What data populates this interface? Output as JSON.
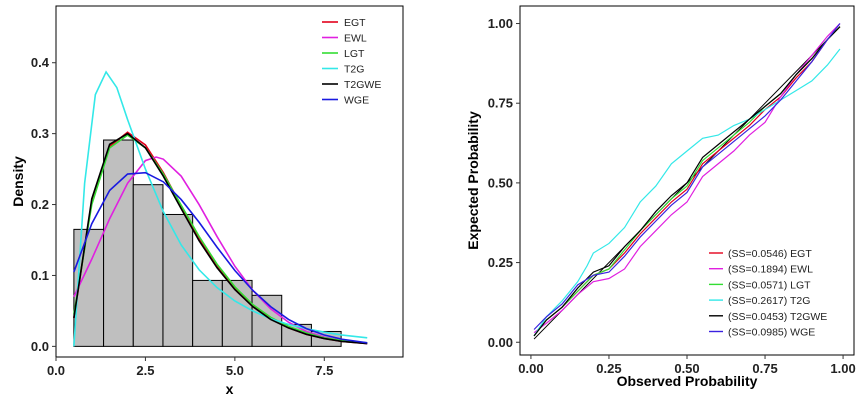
{
  "chart_data": [
    {
      "type": "histogram",
      "xlabel": "x",
      "ylabel": "Density",
      "xlim": [
        0.0,
        9.7
      ],
      "ylim": [
        -0.015,
        0.48
      ],
      "x_ticks": [
        "0.0",
        "2.5",
        "5.0",
        "7.5"
      ],
      "x_tick_values": [
        0,
        2.5,
        5,
        7.5
      ],
      "y_ticks": [
        "0.0",
        "0.1",
        "0.2",
        "0.3",
        "0.4"
      ],
      "y_tick_values": [
        0,
        0.1,
        0.2,
        0.3,
        0.4
      ],
      "legend_position": "top-right",
      "bars": [
        {
          "x0": 0.5,
          "x1": 1.33,
          "density": 0.165
        },
        {
          "x0": 1.33,
          "x1": 2.16,
          "density": 0.291
        },
        {
          "x0": 2.16,
          "x1": 2.99,
          "density": 0.228
        },
        {
          "x0": 2.99,
          "x1": 3.82,
          "density": 0.186
        },
        {
          "x0": 3.82,
          "x1": 4.65,
          "density": 0.093
        },
        {
          "x0": 4.65,
          "x1": 5.48,
          "density": 0.093
        },
        {
          "x0": 5.48,
          "x1": 6.31,
          "density": 0.072
        },
        {
          "x0": 6.31,
          "x1": 7.14,
          "density": 0.031
        },
        {
          "x0": 7.14,
          "x1": 7.97,
          "density": 0.021
        },
        {
          "x0": 7.97,
          "x1": 8.8,
          "density": 0.0
        }
      ],
      "series": [
        {
          "name": "EGT",
          "color": "#e3001b",
          "x": [
            0.5,
            1.0,
            1.5,
            2.0,
            2.5,
            3.0,
            3.5,
            4.0,
            4.5,
            5.0,
            5.5,
            6.0,
            6.5,
            7.0,
            7.5,
            8.0,
            8.7
          ],
          "y": [
            0.04,
            0.205,
            0.282,
            0.302,
            0.284,
            0.245,
            0.198,
            0.152,
            0.113,
            0.081,
            0.057,
            0.039,
            0.026,
            0.017,
            0.011,
            0.007,
            0.004
          ]
        },
        {
          "name": "EWL",
          "color": "#e020e0",
          "x": [
            0.5,
            1.0,
            1.5,
            2.0,
            2.5,
            2.8,
            3.0,
            3.5,
            4.0,
            4.5,
            5.0,
            5.5,
            6.0,
            6.5,
            7.0,
            7.5,
            8.0,
            8.7
          ],
          "y": [
            0.07,
            0.123,
            0.18,
            0.23,
            0.262,
            0.267,
            0.264,
            0.24,
            0.2,
            0.155,
            0.113,
            0.079,
            0.053,
            0.034,
            0.021,
            0.013,
            0.008,
            0.004
          ]
        },
        {
          "name": "LGT",
          "color": "#33dd33",
          "x": [
            0.5,
            1.0,
            1.5,
            2.0,
            2.5,
            3.0,
            3.5,
            4.0,
            4.5,
            5.0,
            5.5,
            6.0,
            6.5,
            7.0,
            7.5,
            8.0,
            8.7
          ],
          "y": [
            0.045,
            0.2,
            0.28,
            0.298,
            0.28,
            0.243,
            0.199,
            0.155,
            0.116,
            0.084,
            0.059,
            0.041,
            0.028,
            0.019,
            0.012,
            0.008,
            0.005
          ]
        },
        {
          "name": "T2G",
          "color": "#33e8e8",
          "x": [
            0.5,
            0.8,
            1.1,
            1.4,
            1.7,
            2.0,
            2.5,
            3.0,
            3.5,
            4.0,
            4.5,
            5.0,
            5.5,
            6.0,
            6.5,
            7.0,
            7.5,
            8.0,
            8.7
          ],
          "y": [
            0.0,
            0.23,
            0.355,
            0.387,
            0.365,
            0.32,
            0.25,
            0.19,
            0.143,
            0.108,
            0.083,
            0.064,
            0.05,
            0.039,
            0.031,
            0.025,
            0.02,
            0.016,
            0.012
          ]
        },
        {
          "name": "T2GWE",
          "color": "#000000",
          "x": [
            0.5,
            1.0,
            1.5,
            2.0,
            2.5,
            3.0,
            3.5,
            4.0,
            4.5,
            5.0,
            5.5,
            6.0,
            6.5,
            7.0,
            7.5,
            8.0,
            8.7
          ],
          "y": [
            0.04,
            0.208,
            0.285,
            0.3,
            0.28,
            0.24,
            0.194,
            0.149,
            0.111,
            0.08,
            0.056,
            0.038,
            0.026,
            0.017,
            0.011,
            0.007,
            0.004
          ]
        },
        {
          "name": "WGE",
          "color": "#1a1ae0",
          "x": [
            0.5,
            1.0,
            1.5,
            2.0,
            2.5,
            3.0,
            3.5,
            4.0,
            4.5,
            5.0,
            5.5,
            6.0,
            6.5,
            7.0,
            7.5,
            8.0,
            8.7
          ],
          "y": [
            0.105,
            0.173,
            0.22,
            0.243,
            0.245,
            0.232,
            0.207,
            0.175,
            0.14,
            0.107,
            0.079,
            0.056,
            0.038,
            0.025,
            0.016,
            0.01,
            0.005
          ]
        }
      ]
    },
    {
      "type": "line",
      "xlabel": "Observed Probability",
      "ylabel": "Expected Probability",
      "xlim": [
        -0.035,
        1.035
      ],
      "ylim": [
        -0.04,
        1.055
      ],
      "x_ticks": [
        "0.00",
        "0.25",
        "0.50",
        "0.75",
        "1.00"
      ],
      "x_tick_values": [
        0,
        0.25,
        0.5,
        0.75,
        1.0
      ],
      "y_ticks": [
        "0.00",
        "0.25",
        "0.50",
        "0.75",
        "1.00"
      ],
      "y_tick_values": [
        0,
        0.25,
        0.5,
        0.75,
        1.0
      ],
      "legend_position": "bottom-right",
      "reference_line": {
        "x": [
          0.01,
          0.99
        ],
        "y": [
          0.01,
          0.99
        ],
        "color": "#000000"
      },
      "series": [
        {
          "name": "EGT",
          "label": "(SS=0.0546) EGT",
          "color": "#e3001b",
          "x": [
            0.01,
            0.05,
            0.1,
            0.15,
            0.2,
            0.25,
            0.3,
            0.35,
            0.4,
            0.45,
            0.5,
            0.55,
            0.6,
            0.65,
            0.7,
            0.75,
            0.8,
            0.85,
            0.9,
            0.95,
            0.99
          ],
          "y": [
            0.02,
            0.07,
            0.11,
            0.16,
            0.21,
            0.23,
            0.28,
            0.34,
            0.39,
            0.44,
            0.48,
            0.56,
            0.6,
            0.64,
            0.68,
            0.73,
            0.77,
            0.83,
            0.88,
            0.95,
            0.99
          ]
        },
        {
          "name": "EWL",
          "label": "(SS=0.1894) EWL",
          "color": "#e020e0",
          "x": [
            0.01,
            0.05,
            0.1,
            0.15,
            0.2,
            0.25,
            0.3,
            0.35,
            0.4,
            0.45,
            0.5,
            0.55,
            0.6,
            0.65,
            0.7,
            0.75,
            0.8,
            0.85,
            0.9,
            0.95,
            0.99
          ],
          "y": [
            0.03,
            0.06,
            0.1,
            0.15,
            0.19,
            0.2,
            0.23,
            0.3,
            0.35,
            0.4,
            0.44,
            0.52,
            0.56,
            0.6,
            0.65,
            0.69,
            0.77,
            0.84,
            0.9,
            0.96,
            1.0
          ]
        },
        {
          "name": "LGT",
          "label": "(SS=0.0571) LGT",
          "color": "#33dd33",
          "x": [
            0.01,
            0.05,
            0.1,
            0.15,
            0.2,
            0.25,
            0.3,
            0.35,
            0.4,
            0.45,
            0.5,
            0.55,
            0.6,
            0.65,
            0.7,
            0.75,
            0.8,
            0.85,
            0.9,
            0.95,
            0.99
          ],
          "y": [
            0.02,
            0.07,
            0.11,
            0.16,
            0.21,
            0.23,
            0.29,
            0.35,
            0.4,
            0.45,
            0.49,
            0.57,
            0.61,
            0.65,
            0.69,
            0.74,
            0.78,
            0.84,
            0.89,
            0.95,
            0.99
          ]
        },
        {
          "name": "T2G",
          "label": "(SS=0.2617) T2G",
          "color": "#33e8e8",
          "x": [
            0.01,
            0.05,
            0.1,
            0.15,
            0.18,
            0.2,
            0.25,
            0.3,
            0.35,
            0.4,
            0.45,
            0.5,
            0.55,
            0.6,
            0.65,
            0.7,
            0.75,
            0.8,
            0.85,
            0.9,
            0.95,
            0.99
          ],
          "y": [
            0.02,
            0.08,
            0.13,
            0.19,
            0.24,
            0.28,
            0.31,
            0.36,
            0.44,
            0.49,
            0.56,
            0.6,
            0.64,
            0.65,
            0.68,
            0.7,
            0.73,
            0.76,
            0.79,
            0.82,
            0.87,
            0.92
          ]
        },
        {
          "name": "T2GWE",
          "label": "(SS=0.0453) T2GWE",
          "color": "#000000",
          "x": [
            0.01,
            0.05,
            0.1,
            0.15,
            0.2,
            0.25,
            0.3,
            0.35,
            0.4,
            0.45,
            0.5,
            0.55,
            0.6,
            0.65,
            0.7,
            0.75,
            0.8,
            0.85,
            0.9,
            0.95,
            0.99
          ],
          "y": [
            0.02,
            0.07,
            0.11,
            0.17,
            0.22,
            0.24,
            0.3,
            0.35,
            0.41,
            0.46,
            0.5,
            0.58,
            0.62,
            0.66,
            0.7,
            0.74,
            0.78,
            0.84,
            0.89,
            0.95,
            0.99
          ]
        },
        {
          "name": "WGE",
          "label": "(SS=0.0985) WGE",
          "color": "#3a22e0",
          "x": [
            0.01,
            0.05,
            0.1,
            0.15,
            0.2,
            0.25,
            0.3,
            0.35,
            0.4,
            0.45,
            0.5,
            0.55,
            0.6,
            0.65,
            0.7,
            0.75,
            0.8,
            0.85,
            0.9,
            0.95,
            0.99
          ],
          "y": [
            0.04,
            0.08,
            0.12,
            0.18,
            0.21,
            0.22,
            0.27,
            0.33,
            0.38,
            0.43,
            0.47,
            0.55,
            0.59,
            0.63,
            0.67,
            0.71,
            0.76,
            0.82,
            0.88,
            0.95,
            1.0
          ]
        }
      ]
    }
  ]
}
